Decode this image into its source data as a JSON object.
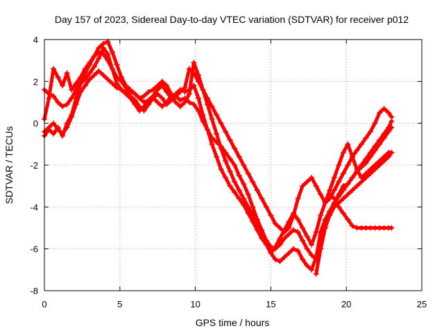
{
  "chart_data": {
    "type": "scatter",
    "title": "Day 157 of 2023, Sidereal Day-to-day VTEC variation (SDTVAR) for receiver p012",
    "xlabel": "GPS time / hours",
    "ylabel": "SDTVAR / TECUs",
    "xlim": [
      0,
      25
    ],
    "ylim": [
      -8,
      4
    ],
    "x_ticks": [
      0,
      5,
      10,
      15,
      20,
      25
    ],
    "y_ticks": [
      -8,
      -6,
      -4,
      -2,
      0,
      2,
      4
    ],
    "x_tick_labels": [
      "0",
      "5",
      "10",
      "15",
      "20",
      "25"
    ],
    "y_tick_labels": [
      "-8",
      "-6",
      "-4",
      "-2",
      "0",
      "2",
      "4"
    ],
    "grid": true,
    "marker": "+",
    "color": "#ff0000",
    "series": [
      {
        "x": [
          0.0,
          0.3,
          0.6,
          0.9,
          1.2,
          1.5,
          1.8,
          2.1,
          2.4,
          2.7,
          3.0,
          3.3,
          3.6,
          3.9,
          4.2,
          4.5,
          4.8,
          5.1,
          5.4,
          5.7,
          6.0,
          6.3,
          6.6,
          6.9,
          7.2,
          7.5,
          7.8,
          8.1,
          8.4,
          8.7,
          9.0,
          9.3,
          9.6,
          9.9,
          10.2,
          10.5,
          10.8,
          11.1,
          11.4,
          11.7,
          12.0,
          12.3,
          12.6,
          12.9,
          13.2,
          13.5,
          13.8,
          14.1,
          14.4,
          14.7,
          15.0,
          15.3,
          15.6,
          15.9,
          16.2,
          16.5,
          16.8,
          17.1,
          17.4,
          17.7,
          18.0,
          18.3,
          18.6,
          18.9,
          19.2,
          19.5,
          19.8,
          20.1,
          20.4,
          20.7,
          21.0,
          21.3,
          21.6,
          21.9,
          22.2,
          22.5,
          22.8,
          23.0
        ],
        "y": [
          -0.6,
          -0.3,
          -0.5,
          -0.2,
          -0.6,
          0.0,
          0.4,
          1.2,
          1.9,
          2.1,
          2.4,
          2.7,
          3.1,
          3.6,
          3.3,
          2.6,
          1.9,
          1.6,
          1.5,
          1.3,
          1.1,
          0.8,
          0.6,
          0.9,
          1.2,
          1.4,
          1.2,
          0.9,
          1.1,
          1.3,
          1.1,
          1.2,
          1.0,
          0.9,
          0.6,
          0.1,
          -0.3,
          -0.7,
          -0.9,
          -1.1,
          -1.4,
          -1.7,
          -2.0,
          -2.5,
          -2.9,
          -3.4,
          -4.0,
          -4.6,
          -5.1,
          -5.6,
          -5.9,
          -6.0,
          -5.8,
          -5.5,
          -5.3,
          -5.1,
          -5.2,
          -5.6,
          -6.0,
          -6.3,
          -6.5,
          -6.0,
          -5.0,
          -4.2,
          -3.8,
          -3.4,
          -3.0,
          -2.9,
          -2.6,
          -2.3,
          -2.0,
          -1.7,
          -1.4,
          -1.1,
          -0.8,
          -0.5,
          -0.2,
          0.1
        ]
      },
      {
        "x": [
          0.0,
          0.3,
          0.6,
          0.9,
          1.2,
          1.5,
          1.8,
          2.1,
          2.4,
          2.7,
          3.0,
          3.3,
          3.6,
          3.9,
          4.2,
          4.5,
          4.8,
          5.1,
          5.4,
          5.7,
          6.0,
          6.3,
          6.6,
          6.9,
          7.2,
          7.5,
          7.8,
          8.1,
          8.4,
          8.7,
          9.0,
          9.3,
          9.6,
          9.9,
          10.2,
          10.5,
          10.8,
          11.1,
          11.4,
          11.7,
          12.0,
          12.3,
          12.6,
          12.9,
          13.2,
          13.5,
          13.8,
          14.1,
          14.4,
          14.7,
          15.0,
          15.3,
          15.6,
          15.9,
          16.2,
          16.5,
          16.8,
          17.1,
          17.4,
          17.7,
          18.0,
          18.3,
          18.6,
          18.9,
          19.2,
          19.5,
          19.8,
          20.1,
          20.4,
          20.7,
          21.0,
          21.3,
          21.6,
          21.9,
          22.2,
          22.5,
          22.8,
          23.0
        ],
        "y": [
          1.6,
          1.4,
          1.3,
          1.0,
          0.8,
          0.9,
          1.2,
          1.6,
          2.0,
          2.4,
          2.8,
          3.2,
          3.6,
          3.8,
          3.9,
          3.4,
          2.8,
          2.2,
          1.8,
          1.6,
          1.4,
          1.2,
          1.0,
          1.1,
          1.3,
          1.6,
          1.8,
          1.5,
          1.2,
          1.4,
          1.6,
          1.5,
          1.6,
          1.8,
          1.2,
          0.4,
          -0.3,
          -1.0,
          -1.6,
          -2.2,
          -2.6,
          -3.0,
          -3.3,
          -3.6,
          -3.9,
          -4.3,
          -4.7,
          -5.1,
          -5.5,
          -5.8,
          -6.2,
          -6.5,
          -6.6,
          -6.4,
          -6.2,
          -6.0,
          -6.1,
          -6.5,
          -6.8,
          -7.0,
          -6.4,
          -5.2,
          -4.6,
          -4.2,
          -3.8,
          -3.5,
          -3.2,
          -2.9,
          -2.6,
          -2.3,
          -2.1,
          -1.9,
          -1.6,
          -1.3,
          -1.0,
          -0.7,
          -0.4,
          -0.2
        ]
      },
      {
        "x": [
          0.0,
          0.3,
          0.6,
          0.9,
          1.2,
          1.5,
          1.8,
          2.1,
          2.4,
          2.7,
          3.0,
          3.3,
          3.6,
          3.9,
          4.2,
          4.5,
          4.8,
          5.1,
          5.4,
          5.7,
          6.0,
          6.3,
          6.6,
          6.9,
          7.2,
          7.5,
          7.8,
          8.1,
          8.4,
          8.7,
          9.0,
          9.3,
          9.6,
          9.9,
          10.2,
          10.5,
          10.8,
          11.1,
          11.4,
          11.7,
          12.0,
          12.3,
          12.6,
          12.9,
          13.2,
          13.5,
          13.8,
          14.1,
          14.4,
          14.7,
          15.0,
          15.3,
          15.6,
          15.9,
          16.2,
          16.5,
          16.8,
          17.1,
          17.4,
          17.7,
          18.0,
          18.3,
          18.6,
          18.9,
          19.2,
          19.5,
          19.8,
          20.1,
          20.4,
          20.7,
          21.0,
          21.3,
          21.6,
          21.9,
          22.2,
          22.5,
          22.8,
          23.0
        ],
        "y": [
          0.2,
          1.2,
          2.6,
          2.2,
          1.8,
          2.4,
          1.6,
          1.9,
          2.2,
          2.6,
          2.9,
          3.2,
          3.4,
          3.3,
          3.0,
          2.6,
          2.2,
          2.0,
          1.7,
          1.5,
          1.4,
          1.2,
          1.3,
          1.5,
          1.6,
          1.8,
          2.0,
          1.8,
          1.4,
          1.3,
          1.5,
          1.7,
          2.6,
          2.4,
          2.0,
          1.6,
          1.2,
          0.8,
          0.4,
          0.0,
          -0.4,
          -0.8,
          -1.2,
          -1.6,
          -2.0,
          -2.4,
          -2.8,
          -3.2,
          -3.6,
          -4.0,
          -4.4,
          -4.8,
          -5.0,
          -5.2,
          -5.0,
          -4.4,
          -3.6,
          -3.0,
          -2.8,
          -2.6,
          -3.0,
          -3.4,
          -3.8,
          -3.6,
          -3.2,
          -2.8,
          -2.4,
          -2.0,
          -1.6,
          -1.3,
          -1.0,
          -0.7,
          -0.4,
          0.0,
          0.5,
          0.7,
          0.5,
          0.3
        ]
      },
      {
        "x": [
          0.0,
          0.3,
          0.6,
          0.9,
          1.2,
          1.5,
          1.8,
          2.1,
          2.4,
          2.7,
          3.0,
          3.3,
          3.6,
          3.9,
          4.2,
          4.5,
          4.8,
          5.1,
          5.4,
          5.7,
          6.0,
          6.3,
          6.6,
          6.9,
          7.2,
          7.5,
          7.8,
          8.1,
          8.4,
          8.7,
          9.0,
          9.3,
          9.6,
          9.9,
          10.2,
          10.5,
          10.8,
          11.1,
          11.4,
          11.7,
          12.0,
          12.3,
          12.6,
          12.9,
          13.2,
          13.5,
          13.8,
          14.1,
          14.4,
          14.7,
          15.0,
          15.3,
          15.6,
          15.9,
          16.2,
          16.5,
          16.8,
          17.1,
          17.4,
          17.7,
          18.0,
          18.3,
          18.6,
          18.9,
          19.2,
          19.5,
          19.8,
          20.1,
          20.4,
          20.7,
          21.0,
          21.3,
          21.6,
          21.9,
          22.2,
          22.5,
          22.8,
          23.0
        ],
        "y": [
          -0.4,
          -0.2,
          0.0,
          -0.3,
          -0.5,
          -0.2,
          0.3,
          0.9,
          1.5,
          1.8,
          2.1,
          2.3,
          2.5,
          2.3,
          2.1,
          1.9,
          1.7,
          1.6,
          1.4,
          1.2,
          0.9,
          0.6,
          0.8,
          1.0,
          1.2,
          1.0,
          0.8,
          1.0,
          1.3,
          1.0,
          0.8,
          1.0,
          1.4,
          2.9,
          2.3,
          1.6,
          0.9,
          0.2,
          -0.5,
          -1.2,
          -1.8,
          -2.3,
          -2.8,
          -3.2,
          -3.6,
          -4.0,
          -4.4,
          -4.8,
          -5.3,
          -5.8,
          -6.2,
          -5.9,
          -5.5,
          -5.1,
          -4.7,
          -4.3,
          -4.6,
          -5.0,
          -5.4,
          -5.8,
          -5.2,
          -4.4,
          -3.8,
          -3.4,
          -3.6,
          -4.0,
          -4.3,
          -4.6,
          -4.9,
          -5.0,
          -5.0,
          -5.0,
          -5.0,
          -5.0,
          -5.0,
          -5.0,
          -5.0,
          -5.0
        ]
      },
      {
        "x": [
          18.6,
          18.9,
          19.2,
          19.5,
          19.8,
          20.1,
          20.4,
          20.7,
          21.0,
          21.3,
          21.6,
          21.9,
          22.2,
          22.5,
          22.8,
          23.0
        ],
        "y": [
          -3.8,
          -3.2,
          -2.6,
          -2.0,
          -1.4,
          -1.0,
          -1.6,
          -2.2,
          -2.6,
          -2.4,
          -2.2,
          -2.0,
          -1.8,
          -1.6,
          -1.4,
          -1.4
        ]
      },
      {
        "x": [
          18.0,
          18.3,
          18.6,
          18.9,
          19.2,
          19.5,
          19.8,
          20.1,
          20.4,
          20.7,
          21.0,
          21.3,
          21.6,
          21.9,
          22.2,
          22.5,
          22.8,
          23.0
        ],
        "y": [
          -7.2,
          -6.0,
          -5.0,
          -4.4,
          -4.0,
          -3.8,
          -3.6,
          -3.4,
          -3.2,
          -3.0,
          -2.8,
          -2.6,
          -2.4,
          -2.2,
          -2.0,
          -1.8,
          -1.6,
          -1.4
        ]
      }
    ]
  }
}
